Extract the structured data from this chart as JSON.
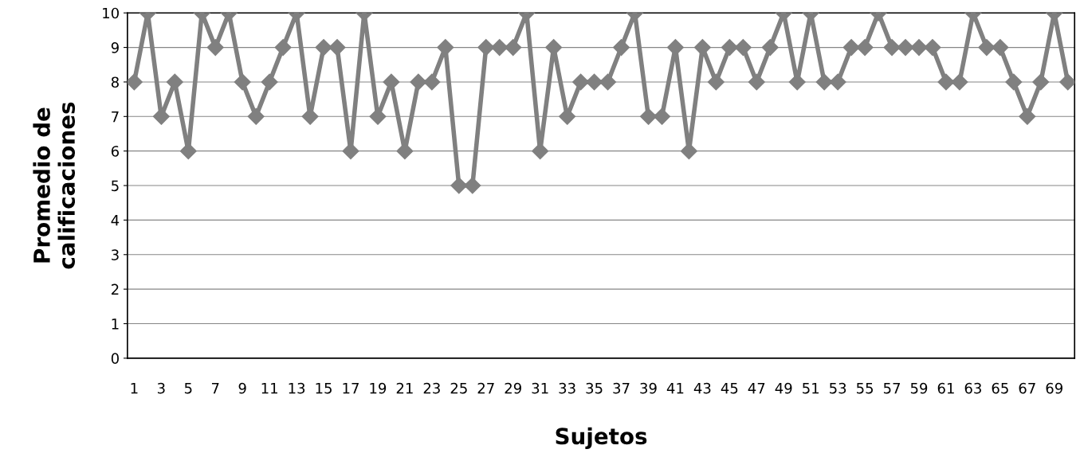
{
  "chart_data": {
    "type": "line",
    "xlabel": "Sujetos",
    "ylabel": "Promedio de\ncalificaciones",
    "categories": [
      "1",
      null,
      "3",
      null,
      "5",
      null,
      "7",
      null,
      "9",
      null,
      "11",
      null,
      "13",
      null,
      "15",
      null,
      "17",
      null,
      "19",
      null,
      "21",
      null,
      "23",
      null,
      "25",
      null,
      "27",
      null,
      "29",
      null,
      "31",
      null,
      "33",
      null,
      "35",
      null,
      "37",
      null,
      "39",
      null,
      "41",
      null,
      "43",
      null,
      "45",
      null,
      "47",
      null,
      "49",
      null,
      "51",
      null,
      "53",
      null,
      "55",
      null,
      "57",
      null,
      "59",
      null,
      "61",
      null,
      "63",
      null,
      "65",
      null,
      "67",
      null,
      "69",
      null
    ],
    "series": [
      {
        "color": "#808080",
        "values": [
          8,
          10,
          7,
          8,
          6,
          10,
          9,
          10,
          8,
          7,
          8,
          9,
          10,
          7,
          9,
          9,
          6,
          10,
          7,
          8,
          6,
          8,
          8,
          9,
          5,
          5,
          9,
          9,
          9,
          10,
          6,
          9,
          7,
          8,
          8,
          8,
          9,
          10,
          7,
          7,
          9,
          6,
          9,
          8,
          9,
          9,
          8,
          9,
          10,
          8,
          10,
          8,
          8,
          9,
          9,
          10,
          9,
          9,
          9,
          9,
          8,
          8,
          10,
          9,
          9,
          8,
          7,
          8,
          10,
          8
        ]
      }
    ],
    "ylim": [
      0,
      10
    ],
    "yticks": [
      0,
      1,
      2,
      3,
      4,
      5,
      6,
      7,
      8,
      9,
      10
    ],
    "grid": "y",
    "marker": "diamond",
    "line_style": "solid"
  }
}
